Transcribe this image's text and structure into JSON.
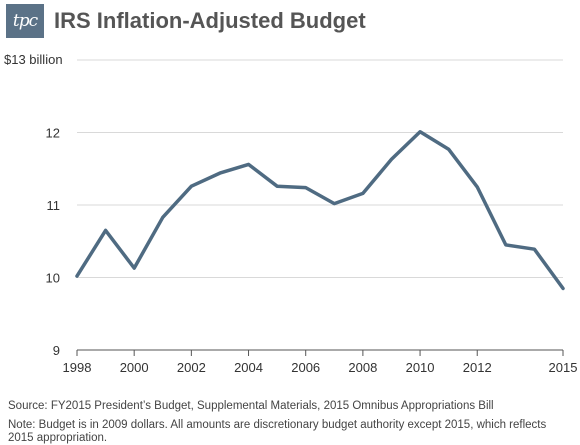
{
  "header": {
    "logo_text": "tpc",
    "title": "IRS Inflation-Adjusted Budget"
  },
  "chart_data": {
    "type": "line",
    "title": "IRS Inflation-Adjusted Budget",
    "xlabel": "",
    "ylabel": "$13 billion",
    "ylim": [
      9,
      13
    ],
    "xlim": [
      1998,
      2015
    ],
    "yticks": [
      {
        "value": 9,
        "label": "9"
      },
      {
        "value": 10,
        "label": "10"
      },
      {
        "value": 11,
        "label": "11"
      },
      {
        "value": 12,
        "label": "12"
      },
      {
        "value": 13,
        "label": "$13 billion"
      }
    ],
    "xticks": [
      {
        "value": 1998,
        "label": "1998"
      },
      {
        "value": 2000,
        "label": "2000"
      },
      {
        "value": 2002,
        "label": "2002"
      },
      {
        "value": 2004,
        "label": "2004"
      },
      {
        "value": 2006,
        "label": "2006"
      },
      {
        "value": 2008,
        "label": "2008"
      },
      {
        "value": 2010,
        "label": "2010"
      },
      {
        "value": 2012,
        "label": "2012"
      },
      {
        "value": 2015,
        "label": "2015"
      }
    ],
    "grid": true,
    "series": [
      {
        "color": "#4f6b82",
        "x": [
          1998,
          1999,
          2000,
          2001,
          2002,
          2003,
          2004,
          2005,
          2006,
          2007,
          2008,
          2009,
          2010,
          2011,
          2012,
          2013,
          2014,
          2015
        ],
        "values": [
          10.02,
          10.65,
          10.13,
          10.83,
          11.26,
          11.44,
          11.56,
          11.26,
          11.24,
          11.02,
          11.16,
          11.63,
          12.01,
          11.77,
          11.25,
          10.45,
          10.39,
          9.85
        ]
      }
    ]
  },
  "footer": {
    "source": "Source: FY2015 President’s Budget, Supplemental Materials, 2015 Omnibus Appropriations Bill",
    "note": "Note: Budget is in 2009 dollars. All amounts are discretionary budget authority except 2015, which reflects 2015 appropriation."
  }
}
